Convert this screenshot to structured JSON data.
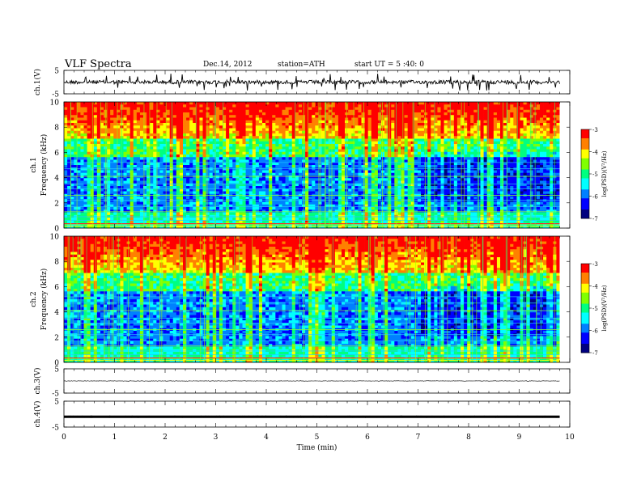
{
  "header": {
    "title": "VLF  Spectra",
    "date": "Dec.14, 2012",
    "station": "station=ATH",
    "start": "start  UT  =   5  :40: 0"
  },
  "chart_data": [
    {
      "type": "line",
      "panel": "ch1-waveform",
      "ylabel": "ch.1(V)",
      "ylim": [
        -5,
        5
      ],
      "yticks": [
        "5",
        "-5"
      ],
      "xlim": [
        0,
        10
      ],
      "x_end": 9.8,
      "baseline": 0,
      "amplitude": 0.8
    },
    {
      "type": "heatmap",
      "panel": "ch1-spectrogram",
      "ylabel": "ch.1  Frequency  (kHz)",
      "ylim": [
        0,
        10
      ],
      "yticks": [
        "0",
        "2",
        "4",
        "6",
        "8",
        "10"
      ],
      "xlim": [
        0,
        10
      ],
      "x_end": 9.8,
      "colorbar": {
        "label": "log(PSD)(V²/Hz)",
        "range": [
          -7,
          -3
        ],
        "ticks": [
          "-3",
          "-4",
          "-5",
          "-6",
          "-7"
        ]
      },
      "hum_lines_khz": [
        0.05,
        0.15,
        0.25,
        0.35,
        0.45,
        0.55,
        0.65,
        0.75,
        0.85,
        1.0
      ]
    },
    {
      "type": "heatmap",
      "panel": "ch2-spectrogram",
      "ylabel": "ch.2  Frequency  (kHz)",
      "ylim": [
        0,
        10
      ],
      "yticks": [
        "0",
        "2",
        "4",
        "6",
        "8",
        "10"
      ],
      "xlim": [
        0,
        10
      ],
      "x_end": 9.8,
      "colorbar": {
        "label": "log(PSD)(V²/Hz)",
        "range": [
          -7,
          -3
        ],
        "ticks": [
          "-3",
          "-4",
          "-5",
          "-6",
          "-7"
        ]
      }
    },
    {
      "type": "line",
      "panel": "ch3-waveform",
      "ylabel": "ch.3(V)",
      "ylim": [
        -5,
        5
      ],
      "yticks": [
        "5",
        "-5"
      ],
      "xlim": [
        0,
        10
      ],
      "x_end": 9.8,
      "baseline": 0,
      "amplitude": 0.1
    },
    {
      "type": "line",
      "panel": "ch4-waveform",
      "ylabel": "ch.4(V)",
      "ylim": [
        -5,
        5
      ],
      "yticks": [
        "5",
        "-5"
      ],
      "xlim": [
        0,
        10
      ],
      "x_end": 9.8,
      "baseline": -1,
      "amplitude": 0.3,
      "xlabel": "Time  (min)",
      "xticks": [
        "0",
        "1",
        "2",
        "3",
        "4",
        "5",
        "6",
        "7",
        "8",
        "9",
        "10"
      ]
    }
  ],
  "colors": {
    "scale": [
      "#000080",
      "#0000ff",
      "#0080ff",
      "#00ffff",
      "#00ff80",
      "#80ff00",
      "#ffff00",
      "#ff8000",
      "#ff0000",
      "#ffffff"
    ]
  }
}
